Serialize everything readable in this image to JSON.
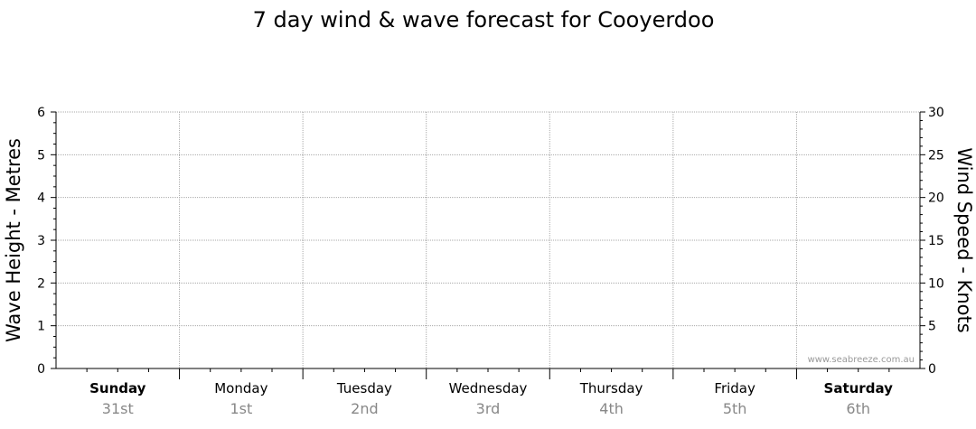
{
  "chart_data": {
    "type": "line",
    "title": "7 day wind & wave forecast for Cooyerdoo",
    "ylabel": "Wave Height - Metres",
    "y2label": "Wind Speed - Knots",
    "ylim": [
      0,
      6
    ],
    "y2lim": [
      0,
      30
    ],
    "yticks": [
      "0",
      "1",
      "2",
      "3",
      "4",
      "5",
      "6"
    ],
    "y2ticks": [
      "0",
      "5",
      "10",
      "15",
      "20",
      "25",
      "30"
    ],
    "grid": true,
    "days": [
      {
        "name": "Sunday",
        "date": "31st",
        "bold": true
      },
      {
        "name": "Monday",
        "date": "1st",
        "bold": false
      },
      {
        "name": "Tuesday",
        "date": "2nd",
        "bold": false
      },
      {
        "name": "Wednesday",
        "date": "3rd",
        "bold": false
      },
      {
        "name": "Thursday",
        "date": "4th",
        "bold": false
      },
      {
        "name": "Friday",
        "date": "5th",
        "bold": false
      },
      {
        "name": "Saturday",
        "date": "6th",
        "bold": true
      }
    ],
    "series": []
  },
  "watermark": "www.seabreeze.com.au"
}
